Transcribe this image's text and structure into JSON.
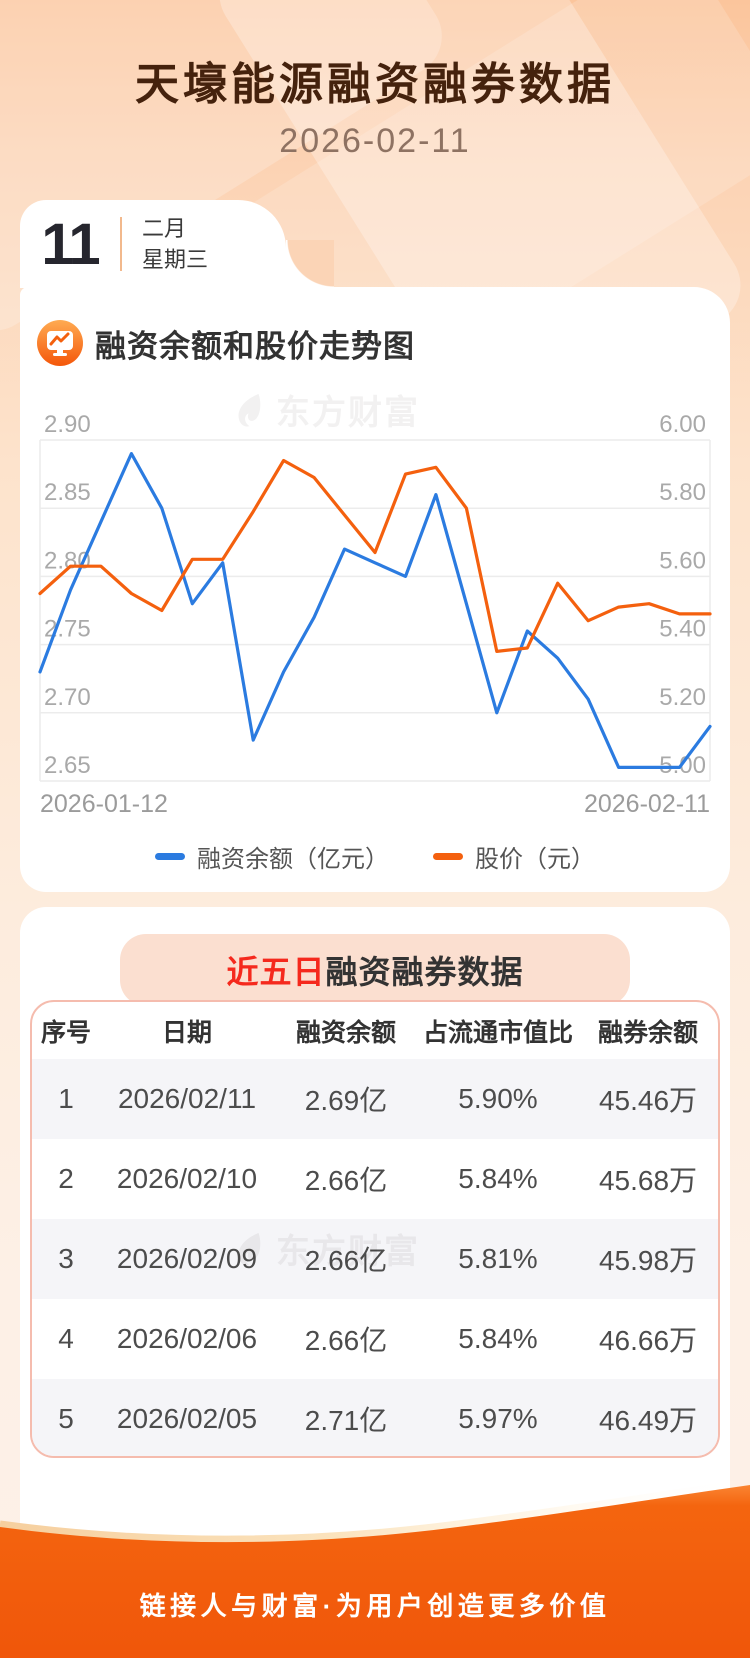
{
  "page": {
    "title": "天壕能源融资融券数据",
    "date": "2026-02-11"
  },
  "calendar": {
    "day": "11",
    "month": "二月",
    "weekday": "星期三"
  },
  "chart_section": {
    "title": "融资余额和股价走势图",
    "icon": "chart-trend-icon"
  },
  "watermark": {
    "text": "东方财富"
  },
  "chart_data": {
    "type": "line",
    "title": "融资余额和股价走势图",
    "x_labels_shown": [
      "2026-01-12",
      "2026-02-11"
    ],
    "grid": true,
    "legend_position": "bottom",
    "left_axis": {
      "min": 2.65,
      "max": 2.9,
      "ticks": [
        "2.90",
        "2.85",
        "2.80",
        "2.75",
        "2.70",
        "2.65"
      ]
    },
    "right_axis": {
      "min": 5.0,
      "max": 6.0,
      "ticks": [
        "6.00",
        "5.80",
        "5.60",
        "5.40",
        "5.20",
        "5.00"
      ]
    },
    "series": [
      {
        "name": "融资余额（亿元）",
        "color": "#2b7be0",
        "axis": "left",
        "values": [
          2.73,
          2.79,
          2.84,
          2.89,
          2.85,
          2.78,
          2.81,
          2.68,
          2.73,
          2.77,
          2.82,
          2.81,
          2.8,
          2.86,
          2.78,
          2.7,
          2.76,
          2.74,
          2.71,
          2.66,
          2.66,
          2.66,
          2.69
        ]
      },
      {
        "name": "股价（元）",
        "color": "#f4600e",
        "axis": "right",
        "values": [
          5.55,
          5.63,
          5.63,
          5.55,
          5.5,
          5.65,
          5.65,
          5.79,
          5.94,
          5.89,
          5.78,
          5.67,
          5.9,
          5.92,
          5.8,
          5.38,
          5.39,
          5.58,
          5.47,
          5.51,
          5.52,
          5.49,
          5.49
        ]
      }
    ]
  },
  "table_section": {
    "title_highlight": "近五日",
    "title_rest": "融资融券数据",
    "headers": [
      "序号",
      "日期",
      "融资余额",
      "占流通市值比",
      "融券余额"
    ],
    "rows": [
      [
        "1",
        "2026/02/11",
        "2.69亿",
        "5.90%",
        "45.46万"
      ],
      [
        "2",
        "2026/02/10",
        "2.66亿",
        "5.84%",
        "45.68万"
      ],
      [
        "3",
        "2026/02/09",
        "2.66亿",
        "5.81%",
        "45.98万"
      ],
      [
        "4",
        "2026/02/06",
        "2.66亿",
        "5.84%",
        "46.66万"
      ],
      [
        "5",
        "2026/02/05",
        "2.71亿",
        "5.97%",
        "46.49万"
      ]
    ]
  },
  "footer": {
    "slogan": "链接人与财富·为用户创造更多价值"
  }
}
